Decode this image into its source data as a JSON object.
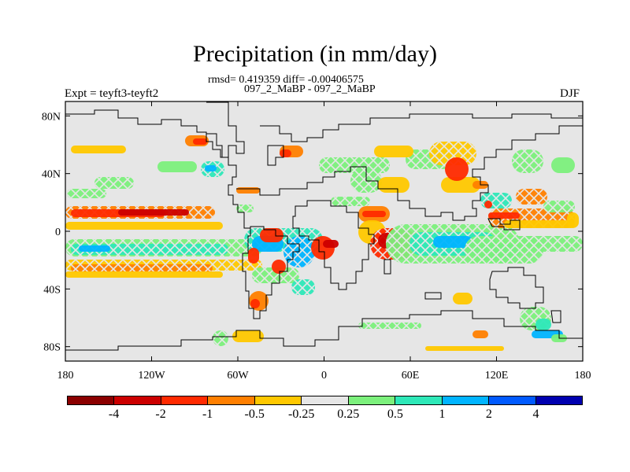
{
  "title": "Precipitation (in mm/day)",
  "stats_line": "rmsd= 0.419359 diff= -0.00406575",
  "case_line": "097_2_MaBP - 097_2_MaBP",
  "experiment_label": "Expt = teyft3-teyft2",
  "season_label": "DJF",
  "map": {
    "lat_range": [
      -90,
      90
    ],
    "lon_range": [
      -180,
      180
    ],
    "lat_ticks": [
      {
        "value": 80,
        "label": "80N"
      },
      {
        "value": 40,
        "label": "40N"
      },
      {
        "value": 0,
        "label": "0"
      },
      {
        "value": -40,
        "label": "40S"
      },
      {
        "value": -80,
        "label": "80S"
      }
    ],
    "lon_ticks": [
      {
        "value": -180,
        "label": "180"
      },
      {
        "value": -120,
        "label": "120W"
      },
      {
        "value": -60,
        "label": "60W"
      },
      {
        "value": 0,
        "label": "0"
      },
      {
        "value": 60,
        "label": "60E"
      },
      {
        "value": 120,
        "label": "120E"
      },
      {
        "value": 180,
        "label": "180"
      }
    ],
    "background_color": "#e6e6e6"
  },
  "colorbar": {
    "colors": [
      "#8b0000",
      "#cc0000",
      "#ff2a00",
      "#ff7f00",
      "#ffc800",
      "#e6e6e6",
      "#7cf07c",
      "#2ee8b8",
      "#00b4ff",
      "#005aff",
      "#0000b0"
    ],
    "labels": [
      "-4",
      "-2",
      "-1",
      "-0.5",
      "-0.25",
      "0.25",
      "0.5",
      "1",
      "2",
      "4"
    ]
  }
}
